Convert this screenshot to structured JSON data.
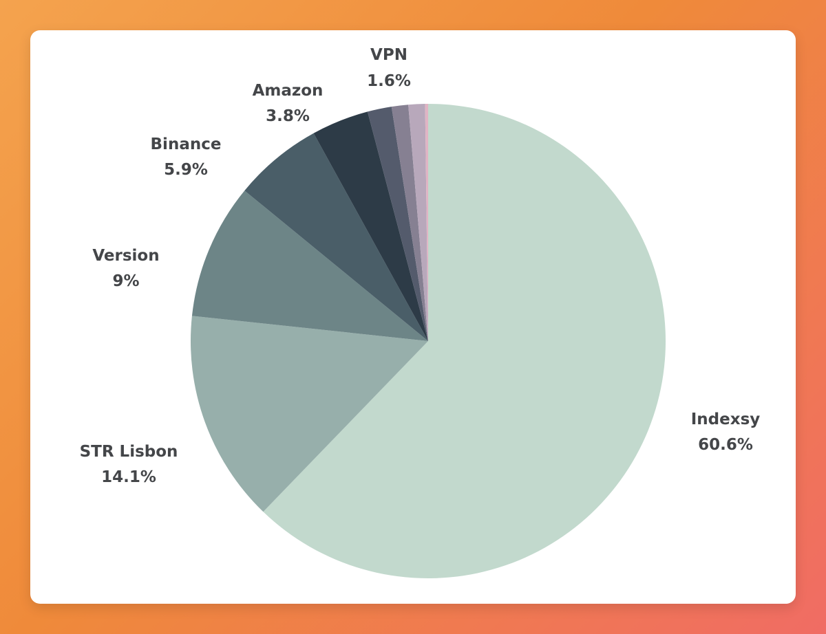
{
  "chart_data": {
    "type": "pie",
    "title": "",
    "series": [
      {
        "name": "Indexsy",
        "value": 60.6,
        "label": "60.6%",
        "color": "#c2d9cd"
      },
      {
        "name": "STR Lisbon",
        "value": 14.1,
        "label": "14.1%",
        "color": "#97afab"
      },
      {
        "name": "Version",
        "value": 9.0,
        "label": "9%",
        "color": "#6d8587"
      },
      {
        "name": "Binance",
        "value": 5.9,
        "label": "5.9%",
        "color": "#4a5e68"
      },
      {
        "name": "Amazon",
        "value": 3.8,
        "label": "3.8%",
        "color": "#2d3b47"
      },
      {
        "name": "VPN",
        "value": 1.6,
        "label": "1.6%",
        "color": "#545b6c"
      },
      {
        "name": "",
        "value": 1.1,
        "label": "",
        "color": "#868092"
      },
      {
        "name": "",
        "value": 1.1,
        "label": "",
        "color": "#b8a8bb"
      },
      {
        "name": "",
        "value": 0.2,
        "label": "",
        "color": "#e0b4c4"
      }
    ]
  },
  "colors": {
    "background_start": "#f4a34e",
    "background_end": "#f06c64",
    "card": "#ffffff",
    "label_text": "#444649"
  }
}
